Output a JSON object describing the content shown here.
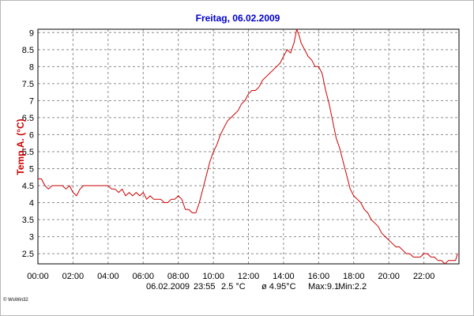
{
  "chart_data": {
    "type": "line",
    "title": "Freitag, 06.02.2009",
    "ylabel": "Temp.A. (°C)",
    "xlabel": "",
    "xlim": [
      0,
      24
    ],
    "ylim": [
      2.2,
      9.1
    ],
    "grid": true,
    "y_ticks": [
      2.5,
      3,
      3.5,
      4,
      4.5,
      5,
      5.5,
      6,
      6.5,
      7,
      7.5,
      8,
      8.5,
      9
    ],
    "y_tick_labels": [
      "2.5",
      "3",
      "3.5",
      "4",
      "4.5",
      "5",
      "5.5",
      "6",
      "6.5",
      "7",
      "7.5",
      "8",
      "8.5",
      "9"
    ],
    "x_ticks": [
      0,
      2,
      4,
      6,
      8,
      10,
      12,
      14,
      16,
      18,
      20,
      22
    ],
    "x_tick_labels": [
      "00:00",
      "02:00",
      "04:00",
      "06:00",
      "08:00",
      "10:00",
      "12:00",
      "14:00",
      "16:00",
      "18:00",
      "20:00",
      "22:00"
    ],
    "series": [
      {
        "color": "#cc0000",
        "x": [
          0,
          0.2,
          0.4,
          0.6,
          0.8,
          1.0,
          1.2,
          1.4,
          1.6,
          1.8,
          2.0,
          2.2,
          2.4,
          2.6,
          2.8,
          3.0,
          3.2,
          3.4,
          3.6,
          3.8,
          4.0,
          4.2,
          4.4,
          4.6,
          4.8,
          5.0,
          5.2,
          5.4,
          5.6,
          5.8,
          6.0,
          6.2,
          6.4,
          6.6,
          6.8,
          7.0,
          7.2,
          7.4,
          7.6,
          7.8,
          8.0,
          8.2,
          8.4,
          8.6,
          8.8,
          9.0,
          9.2,
          9.4,
          9.6,
          9.8,
          10.0,
          10.2,
          10.4,
          10.6,
          10.8,
          11.0,
          11.2,
          11.4,
          11.6,
          11.8,
          12.0,
          12.2,
          12.4,
          12.6,
          12.8,
          13.0,
          13.2,
          13.4,
          13.6,
          13.8,
          14.0,
          14.2,
          14.4,
          14.6,
          14.75,
          14.9,
          15.0,
          15.2,
          15.4,
          15.6,
          15.8,
          16.0,
          16.2,
          16.4,
          16.6,
          16.8,
          17.0,
          17.2,
          17.4,
          17.6,
          17.8,
          18.0,
          18.2,
          18.4,
          18.6,
          18.8,
          19.0,
          19.2,
          19.4,
          19.6,
          19.8,
          20.0,
          20.2,
          20.4,
          20.6,
          20.8,
          21.0,
          21.2,
          21.4,
          21.6,
          21.8,
          22.0,
          22.2,
          22.4,
          22.6,
          22.8,
          23.0,
          23.2,
          23.4,
          23.6,
          23.8,
          23.92
        ],
        "y": [
          4.7,
          4.7,
          4.5,
          4.4,
          4.5,
          4.5,
          4.5,
          4.5,
          4.4,
          4.5,
          4.3,
          4.2,
          4.4,
          4.5,
          4.5,
          4.5,
          4.5,
          4.5,
          4.5,
          4.5,
          4.5,
          4.4,
          4.4,
          4.3,
          4.4,
          4.2,
          4.3,
          4.2,
          4.3,
          4.2,
          4.3,
          4.1,
          4.2,
          4.1,
          4.1,
          4.1,
          4.0,
          4.0,
          4.1,
          4.1,
          4.2,
          4.1,
          3.8,
          3.8,
          3.7,
          3.7,
          4.0,
          4.4,
          4.8,
          5.2,
          5.5,
          5.7,
          6.0,
          6.2,
          6.4,
          6.5,
          6.6,
          6.7,
          6.9,
          7.0,
          7.2,
          7.3,
          7.3,
          7.4,
          7.6,
          7.7,
          7.8,
          7.9,
          8.0,
          8.1,
          8.3,
          8.5,
          8.4,
          8.7,
          9.1,
          8.9,
          8.7,
          8.5,
          8.3,
          8.2,
          8.0,
          8.0,
          7.8,
          7.3,
          6.9,
          6.4,
          5.9,
          5.6,
          5.2,
          4.8,
          4.4,
          4.2,
          4.1,
          4.0,
          3.8,
          3.7,
          3.5,
          3.4,
          3.3,
          3.1,
          3.0,
          2.9,
          2.8,
          2.7,
          2.7,
          2.6,
          2.5,
          2.5,
          2.4,
          2.4,
          2.4,
          2.5,
          2.5,
          2.4,
          2.4,
          2.3,
          2.3,
          2.2,
          2.3,
          2.3,
          2.3,
          2.5
        ]
      }
    ]
  },
  "status": {
    "date": "06.02.2009",
    "time": "23:55",
    "current": "2.5 °C",
    "average": "ø 4.95°C",
    "max": "Max:9.1",
    "min": "Min:2.2"
  },
  "footer": {
    "software": "© WsWin32"
  }
}
